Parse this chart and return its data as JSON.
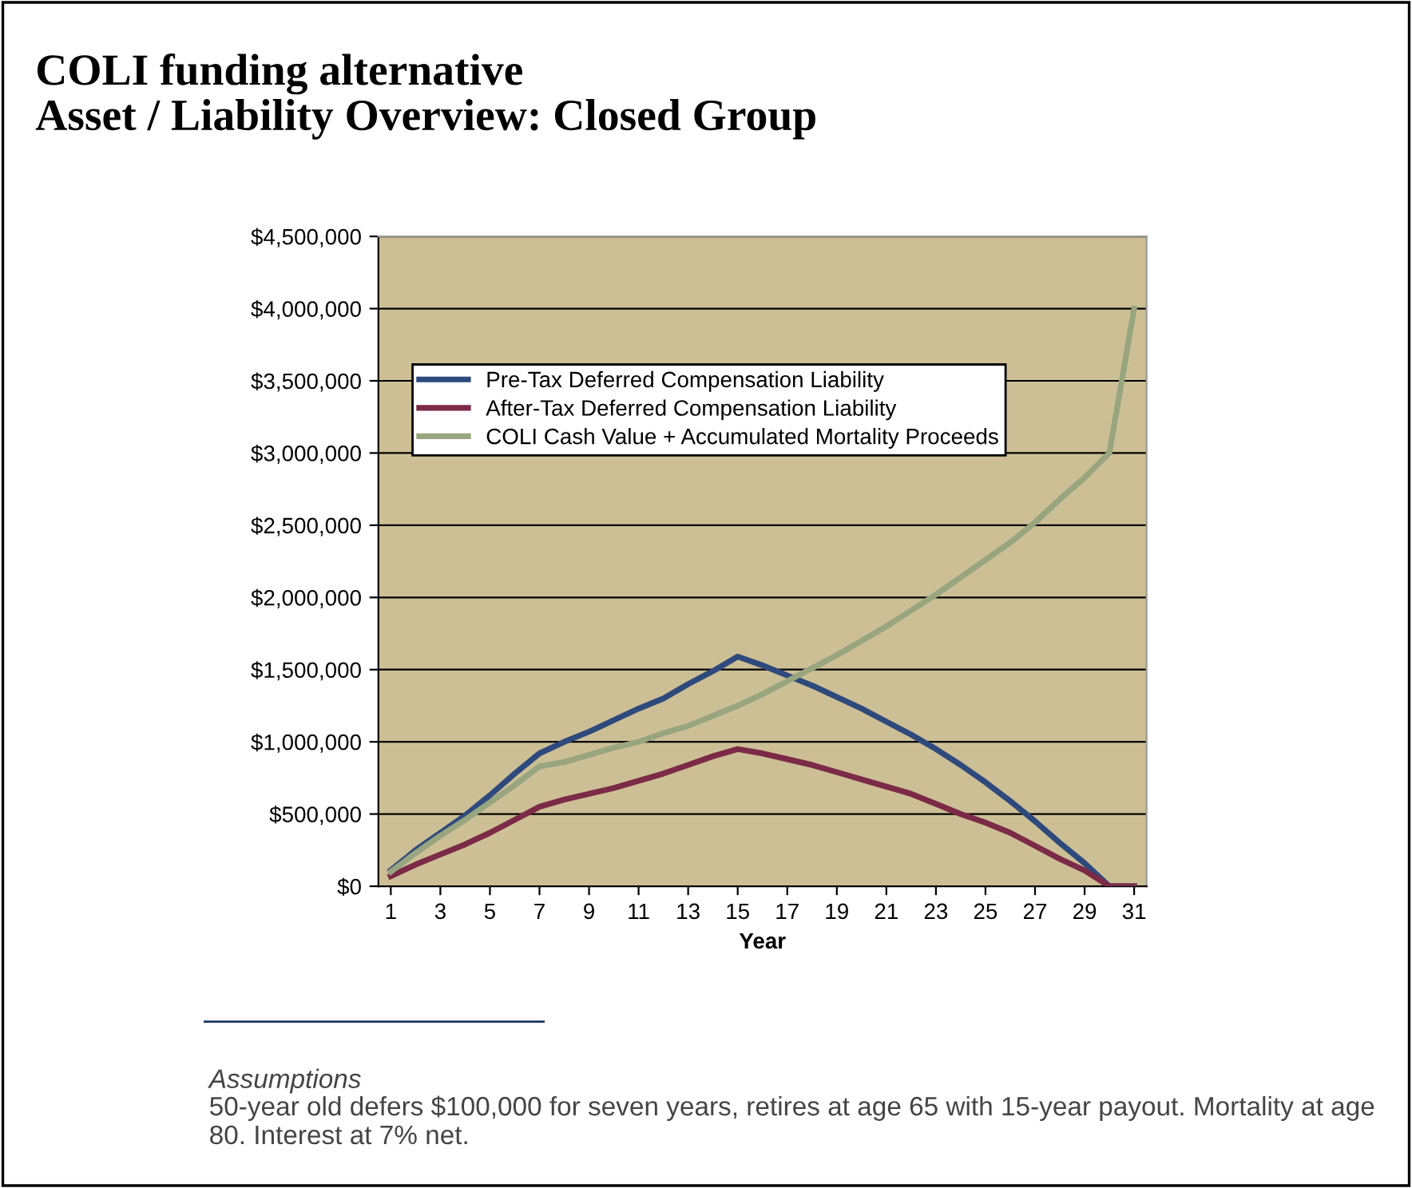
{
  "chart_data": {
    "type": "line",
    "title": "COLI funding alternative\nAsset / Liability Overview: Closed Group",
    "xlabel": "Year",
    "x": [
      1,
      2,
      3,
      4,
      5,
      6,
      7,
      8,
      9,
      10,
      11,
      12,
      13,
      14,
      15,
      16,
      17,
      18,
      19,
      20,
      21,
      22,
      23,
      24,
      25,
      26,
      27,
      28,
      29,
      30,
      31
    ],
    "series": [
      {
        "name": "Pre-Tax Deferred Compensation Liability",
        "color": "#2e4a7d",
        "values": [
          110000,
          250000,
          370000,
          490000,
          630000,
          780000,
          920000,
          1000000,
          1070000,
          1150000,
          1230000,
          1300000,
          1400000,
          1490000,
          1590000,
          1530000,
          1460000,
          1390000,
          1310000,
          1230000,
          1140000,
          1050000,
          950000,
          840000,
          720000,
          590000,
          450000,
          300000,
          160000,
          0,
          0
        ]
      },
      {
        "name": "After-Tax Deferred Compensation Liability",
        "color": "#7b2a47",
        "values": [
          70000,
          150000,
          220000,
          290000,
          370000,
          460000,
          550000,
          600000,
          640000,
          680000,
          730000,
          780000,
          840000,
          900000,
          950000,
          920000,
          880000,
          840000,
          790000,
          740000,
          690000,
          640000,
          570000,
          500000,
          440000,
          370000,
          280000,
          190000,
          110000,
          0,
          0
        ]
      },
      {
        "name": "COLI Cash Value + Accumulated Mortality Proceeds",
        "color": "#98a57f",
        "values": [
          100000,
          230000,
          350000,
          460000,
          580000,
          700000,
          830000,
          860000,
          910000,
          960000,
          1000000,
          1060000,
          1110000,
          1180000,
          1250000,
          1330000,
          1420000,
          1510000,
          1600000,
          1700000,
          1800000,
          1910000,
          2020000,
          2140000,
          2260000,
          2380000,
          2520000,
          2680000,
          2830000,
          3000000,
          4000000
        ]
      }
    ],
    "xlim": [
      0.5,
      31.5
    ],
    "xticks": [
      1,
      3,
      5,
      7,
      9,
      11,
      13,
      15,
      17,
      19,
      21,
      23,
      25,
      27,
      29,
      31
    ],
    "ylim": [
      0,
      4500000
    ],
    "yticks": [
      {
        "value": 0,
        "label": "$0"
      },
      {
        "value": 500000,
        "label": "$500,000"
      },
      {
        "value": 1000000,
        "label": "$1,000,000"
      },
      {
        "value": 1500000,
        "label": "$1,500,000"
      },
      {
        "value": 2000000,
        "label": "$2,000,000"
      },
      {
        "value": 2500000,
        "label": "$2,500,000"
      },
      {
        "value": 3000000,
        "label": "$3,000,000"
      },
      {
        "value": 3500000,
        "label": "$3,500,000"
      },
      {
        "value": 4000000,
        "label": "$4,000,000"
      },
      {
        "value": 4500000,
        "label": "$4,500,000"
      }
    ],
    "grid": "y",
    "legend": "top left",
    "marker": "none",
    "line_style": "solid",
    "annotations": [
      "Assumptions",
      "50-year old defers $100,000 for seven years, retires at age 65 with 15-year payout. Mortality at age 80. Interest at 7% net."
    ]
  }
}
